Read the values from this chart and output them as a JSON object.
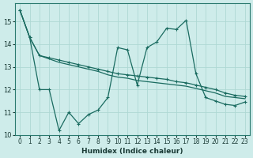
{
  "xlabel": "Humidex (Indice chaleur)",
  "bg_color": "#ceecea",
  "grid_color": "#aed8d4",
  "line_color": "#1a6b60",
  "xlim": [
    -0.5,
    23.5
  ],
  "ylim": [
    10,
    15.8
  ],
  "yticks": [
    10,
    11,
    12,
    13,
    14,
    15
  ],
  "xticks": [
    0,
    1,
    2,
    3,
    4,
    5,
    6,
    7,
    8,
    9,
    10,
    11,
    12,
    13,
    14,
    15,
    16,
    17,
    18,
    19,
    20,
    21,
    22,
    23
  ],
  "line1_x": [
    0,
    1,
    2,
    3,
    4,
    5,
    6,
    7,
    8,
    9,
    10,
    11,
    12,
    13,
    14,
    15,
    16,
    17,
    18,
    19,
    20,
    21,
    22,
    23
  ],
  "line1_y": [
    15.5,
    14.3,
    13.5,
    13.4,
    13.3,
    13.2,
    13.1,
    13.0,
    12.9,
    12.8,
    12.7,
    12.65,
    12.6,
    12.55,
    12.5,
    12.45,
    12.35,
    12.3,
    12.2,
    12.1,
    12.0,
    11.85,
    11.75,
    11.7
  ],
  "line2_x": [
    0,
    1,
    2,
    3,
    4,
    5,
    6,
    7,
    8,
    9,
    10,
    11,
    12,
    13,
    14,
    15,
    16,
    17,
    18,
    19,
    20,
    21,
    22,
    23
  ],
  "line2_y": [
    15.5,
    14.3,
    13.5,
    13.35,
    13.2,
    13.1,
    13.0,
    12.9,
    12.8,
    12.65,
    12.55,
    12.5,
    12.4,
    12.35,
    12.3,
    12.25,
    12.2,
    12.15,
    12.05,
    11.95,
    11.85,
    11.7,
    11.65,
    11.6
  ],
  "line3_x": [
    0,
    1,
    2,
    3,
    4,
    5,
    6,
    7,
    8,
    9,
    10,
    11,
    12,
    13,
    14,
    15,
    16,
    17,
    18,
    19,
    20,
    21,
    22,
    23
  ],
  "line3_y": [
    15.5,
    14.3,
    12.0,
    12.0,
    10.2,
    11.0,
    10.5,
    10.9,
    11.1,
    11.65,
    13.85,
    13.75,
    12.2,
    13.85,
    14.1,
    14.7,
    14.65,
    15.05,
    12.7,
    11.65,
    11.5,
    11.35,
    11.3,
    11.45
  ],
  "line1_markers": true,
  "line2_markers": false,
  "line3_markers": true
}
